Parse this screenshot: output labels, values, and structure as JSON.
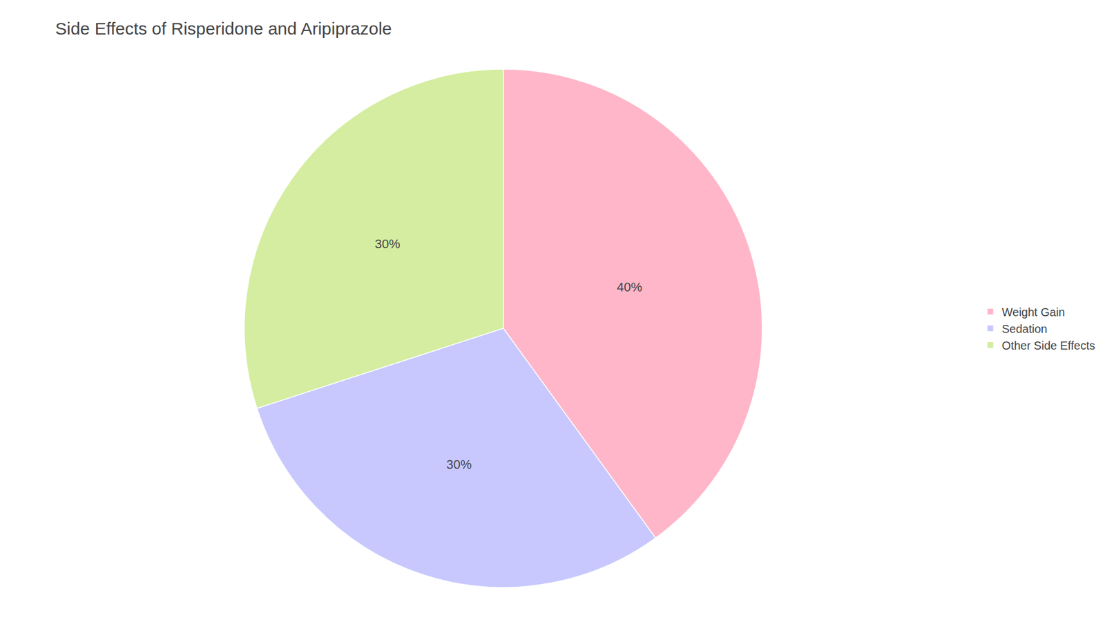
{
  "chart_data": {
    "type": "pie",
    "title": "Side Effects of Risperidone and Aripiprazole",
    "categories": [
      "Weight Gain",
      "Sedation",
      "Other Side Effects"
    ],
    "values": [
      40,
      30,
      30
    ],
    "value_labels": [
      "40%",
      "30%",
      "30%"
    ],
    "colors": [
      "#FFB6C8",
      "#C8C8FF",
      "#D4EDA0"
    ],
    "data_labels": true,
    "legend": "right"
  }
}
